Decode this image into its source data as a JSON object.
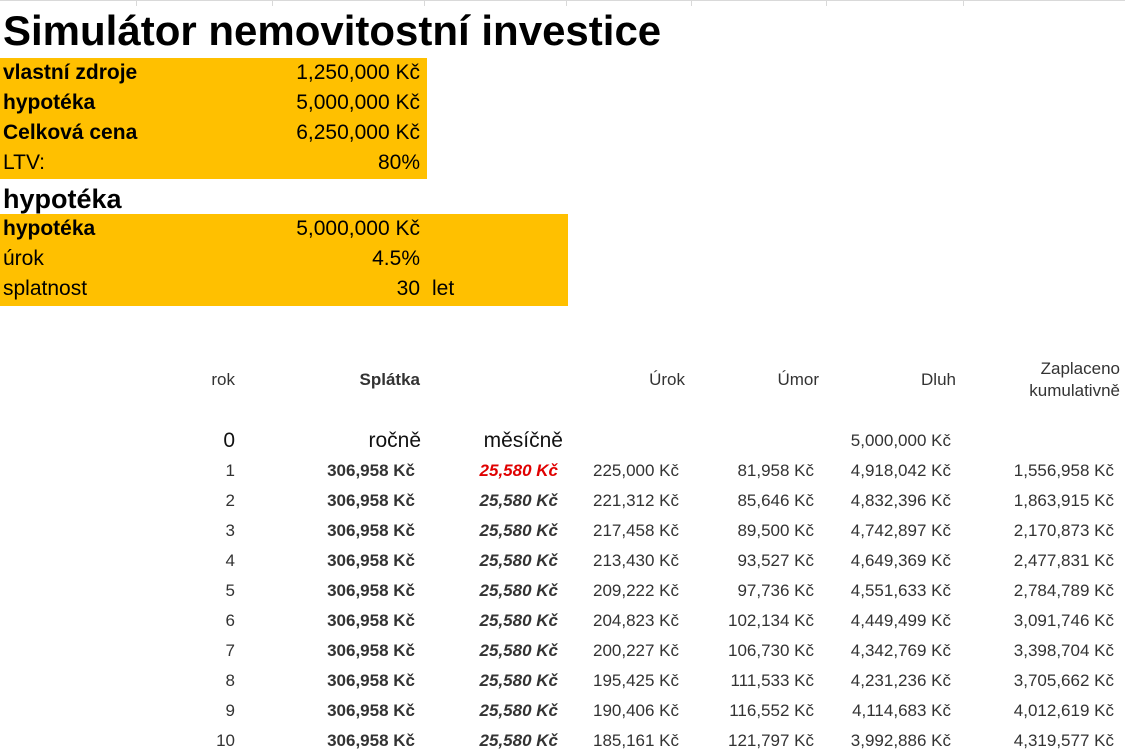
{
  "title": "Simulátor nemovitostní investice",
  "purchase": {
    "rows": [
      {
        "label": "vlastní zdroje",
        "value": "1,250,000 Kč",
        "bold": true
      },
      {
        "label": "hypotéka",
        "value": "5,000,000 Kč",
        "bold": true
      },
      {
        "label": "Celková cena",
        "value": "6,250,000 Kč",
        "bold": true
      },
      {
        "label": "LTV:",
        "value": "80%",
        "bold": false
      }
    ]
  },
  "mortgage_heading": "hypotéka",
  "mortgage": {
    "rows": [
      {
        "label": "hypotéka",
        "value": "5,000,000 Kč",
        "bold": true,
        "unit": ""
      },
      {
        "label": "úrok",
        "value": "4.5%",
        "bold": false,
        "unit": ""
      },
      {
        "label": "splatnost",
        "value": "30",
        "bold": false,
        "unit": "let"
      }
    ]
  },
  "schedule": {
    "headers": {
      "rok": "rok",
      "splatka": "Splátka",
      "urok": "Úrok",
      "umor": "Úmor",
      "dluh": "Dluh",
      "zaplaceno_1": "Zaplaceno",
      "zaplaceno_2": "kumulativně"
    },
    "subheaders": {
      "rok": "0",
      "rocne": "ročně",
      "mesicne": "měsíčně",
      "dluh": "5,000,000 Kč"
    },
    "highlight_color": "#e00000",
    "rows": [
      {
        "rok": "1",
        "rocne": "306,958 Kč",
        "mesicne": "25,580 Kč",
        "urok": "225,000 Kč",
        "umor": "81,958 Kč",
        "dluh": "4,918,042 Kč",
        "zaplaceno": "1,556,958 Kč"
      },
      {
        "rok": "2",
        "rocne": "306,958 Kč",
        "mesicne": "25,580 Kč",
        "urok": "221,312 Kč",
        "umor": "85,646 Kč",
        "dluh": "4,832,396 Kč",
        "zaplaceno": "1,863,915 Kč"
      },
      {
        "rok": "3",
        "rocne": "306,958 Kč",
        "mesicne": "25,580 Kč",
        "urok": "217,458 Kč",
        "umor": "89,500 Kč",
        "dluh": "4,742,897 Kč",
        "zaplaceno": "2,170,873 Kč"
      },
      {
        "rok": "4",
        "rocne": "306,958 Kč",
        "mesicne": "25,580 Kč",
        "urok": "213,430 Kč",
        "umor": "93,527 Kč",
        "dluh": "4,649,369 Kč",
        "zaplaceno": "2,477,831 Kč"
      },
      {
        "rok": "5",
        "rocne": "306,958 Kč",
        "mesicne": "25,580 Kč",
        "urok": "209,222 Kč",
        "umor": "97,736 Kč",
        "dluh": "4,551,633 Kč",
        "zaplaceno": "2,784,789 Kč"
      },
      {
        "rok": "6",
        "rocne": "306,958 Kč",
        "mesicne": "25,580 Kč",
        "urok": "204,823 Kč",
        "umor": "102,134 Kč",
        "dluh": "4,449,499 Kč",
        "zaplaceno": "3,091,746 Kč"
      },
      {
        "rok": "7",
        "rocne": "306,958 Kč",
        "mesicne": "25,580 Kč",
        "urok": "200,227 Kč",
        "umor": "106,730 Kč",
        "dluh": "4,342,769 Kč",
        "zaplaceno": "3,398,704 Kč"
      },
      {
        "rok": "8",
        "rocne": "306,958 Kč",
        "mesicne": "25,580 Kč",
        "urok": "195,425 Kč",
        "umor": "111,533 Kč",
        "dluh": "4,231,236 Kč",
        "zaplaceno": "3,705,662 Kč"
      },
      {
        "rok": "9",
        "rocne": "306,958 Kč",
        "mesicne": "25,580 Kč",
        "urok": "190,406 Kč",
        "umor": "116,552 Kč",
        "dluh": "4,114,683 Kč",
        "zaplaceno": "4,012,619 Kč"
      },
      {
        "rok": "10",
        "rocne": "306,958 Kč",
        "mesicne": "25,580 Kč",
        "urok": "185,161 Kč",
        "umor": "121,797 Kč",
        "dluh": "3,992,886 Kč",
        "zaplaceno": "4,319,577 Kč"
      }
    ]
  }
}
